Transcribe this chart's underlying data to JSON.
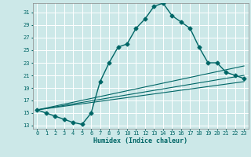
{
  "title": "",
  "xlabel": "Humidex (Indice chaleur)",
  "bg_color": "#cce8e8",
  "grid_color": "#ffffff",
  "line_color": "#006666",
  "xlim": [
    -0.5,
    23.5
  ],
  "ylim": [
    12.5,
    32.5
  ],
  "yticks": [
    13,
    15,
    17,
    19,
    21,
    23,
    25,
    27,
    29,
    31
  ],
  "xticks": [
    0,
    1,
    2,
    3,
    4,
    5,
    6,
    7,
    8,
    9,
    10,
    11,
    12,
    13,
    14,
    15,
    16,
    17,
    18,
    19,
    20,
    21,
    22,
    23
  ],
  "main_x": [
    0,
    1,
    2,
    3,
    4,
    5,
    6,
    7,
    8,
    9,
    10,
    11,
    12,
    13,
    14,
    15,
    16,
    17,
    18,
    19,
    20,
    21,
    22,
    23
  ],
  "main_y": [
    15.5,
    15.0,
    14.5,
    14.0,
    13.5,
    13.2,
    15.0,
    20.0,
    23.0,
    25.5,
    26.0,
    28.5,
    30.0,
    32.0,
    32.5,
    30.5,
    29.5,
    28.5,
    25.5,
    23.0,
    23.0,
    21.5,
    21.0,
    20.5
  ],
  "line2_x": [
    0,
    23
  ],
  "line2_y": [
    15.5,
    22.5
  ],
  "line3_x": [
    0,
    23
  ],
  "line3_y": [
    15.5,
    21.0
  ],
  "line4_x": [
    0,
    23
  ],
  "line4_y": [
    15.5,
    20.0
  ],
  "marker": "D",
  "marker_size": 2.5,
  "linewidth": 1.0
}
